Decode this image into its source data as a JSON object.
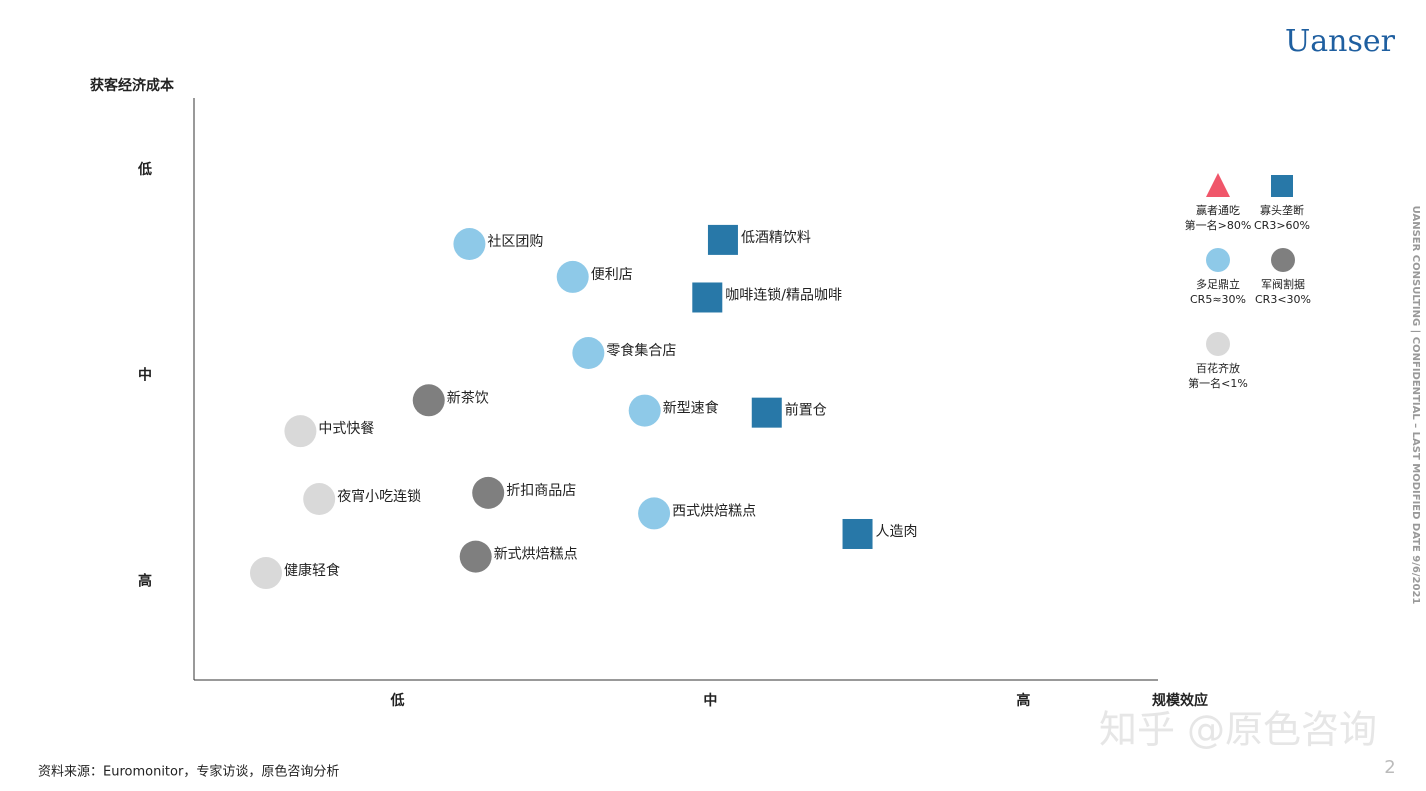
{
  "logo": "Uanser",
  "side_note": "UANSER CONSULTING | CONFIDENTIAL – LAST MODIFIED DATE 9/6/2021",
  "source": "资料来源：Euromonitor，专家访谈，原色咨询分析",
  "page_number": "2",
  "watermark": "知乎 @原色咨询",
  "chart_data": {
    "type": "scatter",
    "x_label": "规模效应",
    "y_label": "获客经济成本",
    "xlim": [
      0.35,
      3.43
    ],
    "ylim": [
      0.52,
      3.35
    ],
    "xticks": [
      {
        "value": 1,
        "label": "低"
      },
      {
        "value": 2,
        "label": "中"
      },
      {
        "value": 3,
        "label": "高"
      }
    ],
    "yticks": [
      {
        "value": 1,
        "label": "高"
      },
      {
        "value": 2,
        "label": "中"
      },
      {
        "value": 3,
        "label": "低"
      }
    ],
    "series": [
      {
        "name": "赢者通吃",
        "description": "第一名>80%",
        "marker": "triangle",
        "color": "#f0566a",
        "x": [],
        "y": [],
        "labels": []
      },
      {
        "name": "寡头垄断",
        "description": "CR3>60%",
        "marker": "square",
        "color": "#2878a8",
        "x": [
          2.04,
          1.99,
          2.18,
          2.47
        ],
        "y": [
          2.66,
          2.38,
          1.82,
          1.23
        ],
        "labels": [
          "低酒精饮料",
          "咖啡连锁/精品咖啡",
          "前置仓",
          "人造肉"
        ]
      },
      {
        "name": "多足鼎立",
        "description": "CR5≈30%",
        "marker": "circle",
        "color": "#8ec9e8",
        "x": [
          1.23,
          1.56,
          1.61,
          1.79,
          1.82
        ],
        "y": [
          2.64,
          2.48,
          2.11,
          1.83,
          1.33
        ],
        "labels": [
          "社区团购",
          "便利店",
          "零食集合店",
          "新型速食",
          "西式烘焙糕点"
        ]
      },
      {
        "name": "军阀割据",
        "description": "CR3<30%",
        "marker": "circle",
        "color": "#7f7f7f",
        "x": [
          1.1,
          1.29,
          1.25
        ],
        "y": [
          1.88,
          1.43,
          1.12
        ],
        "labels": [
          "新茶饮",
          "折扣商品店",
          "新式烘焙糕点"
        ]
      },
      {
        "name": "百花齐放",
        "description": "第一名<1%",
        "marker": "circle",
        "color": "#d9d9d9",
        "x": [
          0.69,
          0.75,
          0.58
        ],
        "y": [
          1.73,
          1.4,
          1.04
        ],
        "labels": [
          "中式快餐",
          "夜宵小吃连锁",
          "健康轻食"
        ]
      }
    ]
  }
}
